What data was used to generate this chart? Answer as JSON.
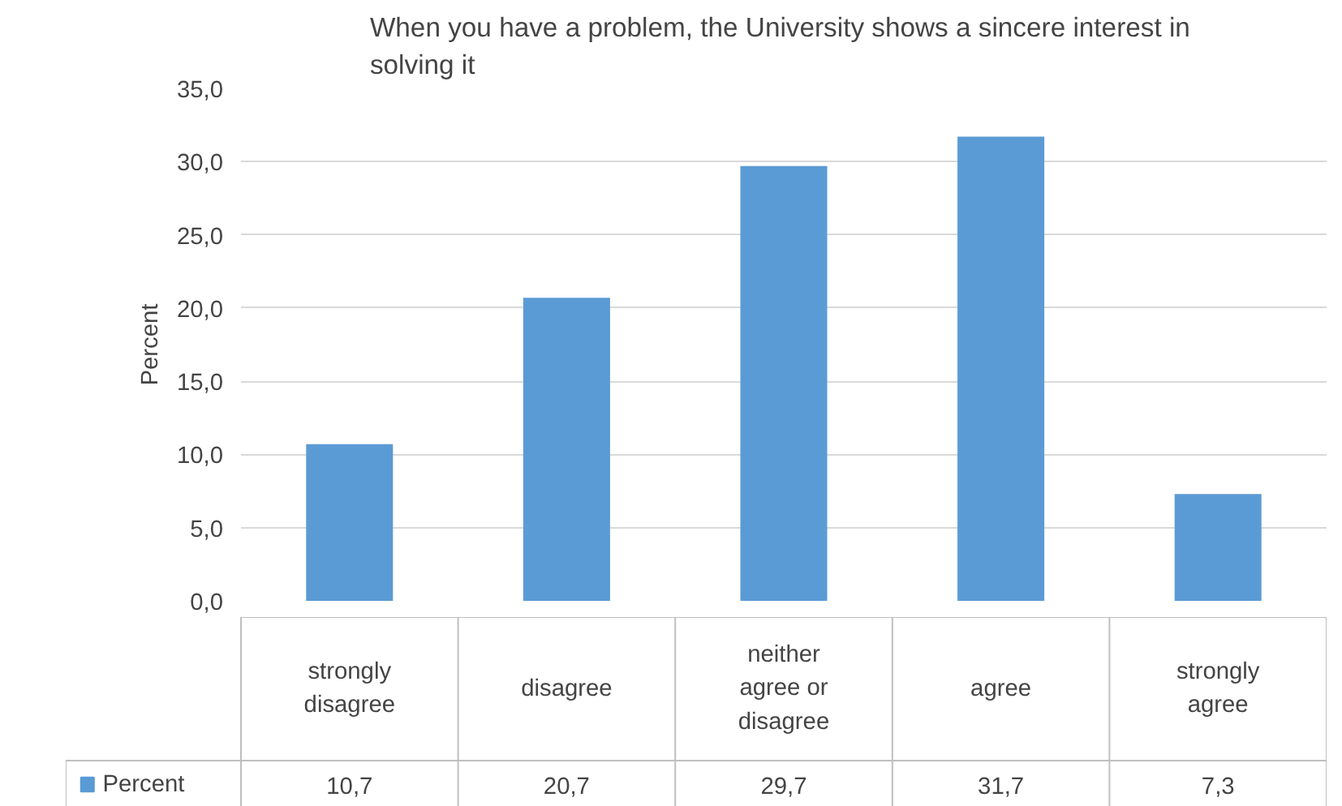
{
  "chart_data": {
    "type": "bar",
    "title": "When you have a problem, the  University shows a sincere interest in solving it",
    "ylabel": "Percent",
    "categories": [
      "strongly disagree",
      "disagree",
      "neither agree or disagree",
      "agree",
      "strongly agree"
    ],
    "series": [
      {
        "name": "Percent",
        "color": "#5b9bd5",
        "values": [
          10.7,
          20.7,
          29.7,
          31.7,
          7.3
        ],
        "value_labels": [
          "10,7",
          "20,7",
          "29,7",
          "31,7",
          "7,3"
        ]
      }
    ],
    "ylim": [
      0,
      35
    ],
    "yticks": [
      {
        "value": 0,
        "label": "0,0"
      },
      {
        "value": 5,
        "label": "5,0"
      },
      {
        "value": 10,
        "label": "10,0"
      },
      {
        "value": 15,
        "label": "15,0"
      },
      {
        "value": 20,
        "label": "20,0"
      },
      {
        "value": 25,
        "label": "25,0"
      },
      {
        "value": 30,
        "label": "30,0"
      },
      {
        "value": 35,
        "label": "35,0"
      }
    ],
    "grid": "y",
    "legend": "bottom"
  }
}
